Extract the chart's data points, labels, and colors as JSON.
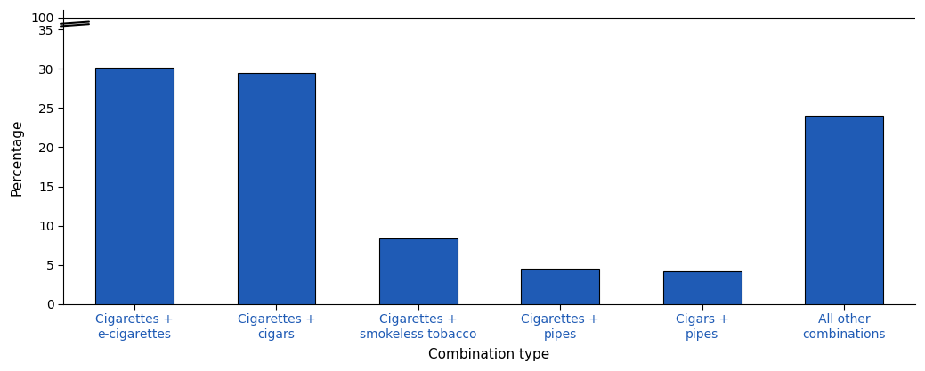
{
  "categories": [
    "Cigarettes +\ne-cigarettes",
    "Cigarettes +\ncigars",
    "Cigarettes +\nsmokeless tobacco",
    "Cigarettes +\npipes",
    "Cigars +\npipes",
    "All other\ncombinations"
  ],
  "values": [
    30.1,
    29.5,
    8.4,
    4.5,
    4.2,
    24.0
  ],
  "bar_color": "#1F5BB5",
  "bar_edgecolor": "#000000",
  "xlabel": "Combination type",
  "ylabel": "Percentage",
  "ytick_values": [
    0,
    5,
    10,
    15,
    20,
    25,
    30,
    35
  ],
  "ytick_top": 100,
  "ytick_top_display": 36.5,
  "ylim_max": 37.5,
  "background_color": "#ffffff",
  "xlabel_fontsize": 11,
  "ylabel_fontsize": 11,
  "tick_fontsize": 10,
  "xtick_color": "#1F5BB5",
  "bar_width": 0.55
}
